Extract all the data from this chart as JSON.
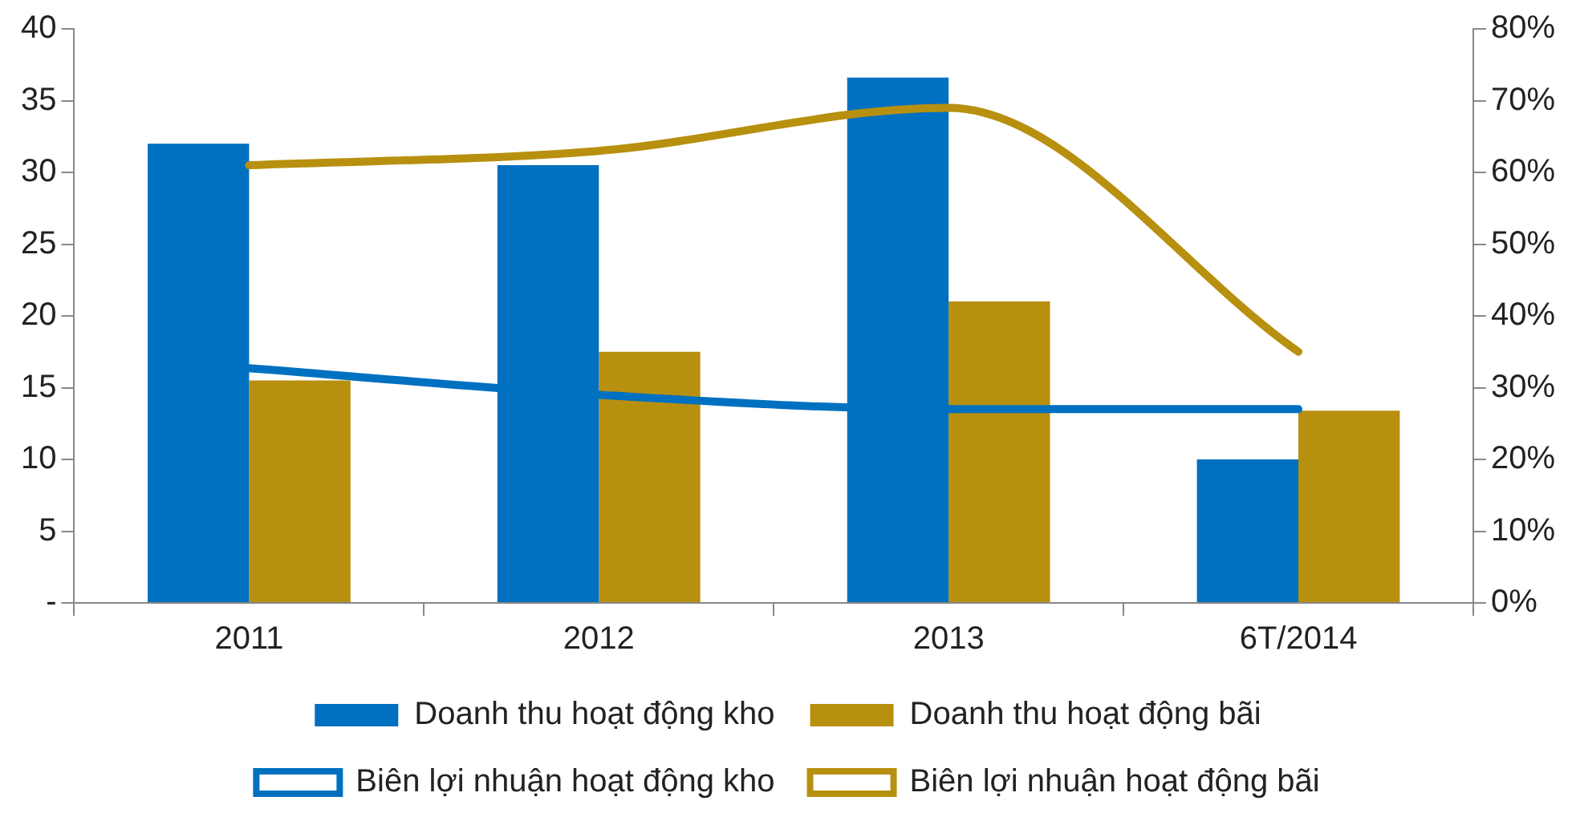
{
  "chart_data": {
    "type": "bar",
    "categories": [
      "2011",
      "2012",
      "2013",
      "6T/2014"
    ],
    "series": [
      {
        "name": "Doanh thu hoạt động kho",
        "color": "#0070c0",
        "values": [
          32,
          30.5,
          36.6,
          10
        ]
      },
      {
        "name": "Doanh thu hoạt động bãi",
        "color": "#b8900f",
        "values": [
          15.5,
          17.5,
          21,
          13.4
        ]
      },
      {
        "name": "Biên lợi nhuận hoạt động kho",
        "type": "line",
        "axis": "y2",
        "color": "#0070c0",
        "values": [
          32.7,
          29,
          27,
          27
        ]
      },
      {
        "name": "Biên lợi nhuận hoạt động bãi",
        "type": "line",
        "axis": "y2",
        "color": "#b8900f",
        "values": [
          61,
          63,
          69,
          35
        ]
      }
    ],
    "ylim": [
      0,
      40
    ],
    "yticks": [
      {
        "value": 0,
        "label": "-"
      },
      5,
      10,
      15,
      20,
      25,
      30,
      35,
      40
    ],
    "y2lim": [
      0,
      80
    ],
    "y2ticks": [
      {
        "value": 0,
        "label": "0%"
      },
      {
        "value": 10,
        "label": "10%"
      },
      {
        "value": 20,
        "label": "20%"
      },
      {
        "value": 30,
        "label": "30%"
      },
      {
        "value": 40,
        "label": "40%"
      },
      {
        "value": 50,
        "label": "50%"
      },
      {
        "value": 60,
        "label": "60%"
      },
      {
        "value": 70,
        "label": "70%"
      },
      {
        "value": 80,
        "label": "80%"
      }
    ],
    "grid": false,
    "legend": "bottom",
    "marker": "none"
  }
}
